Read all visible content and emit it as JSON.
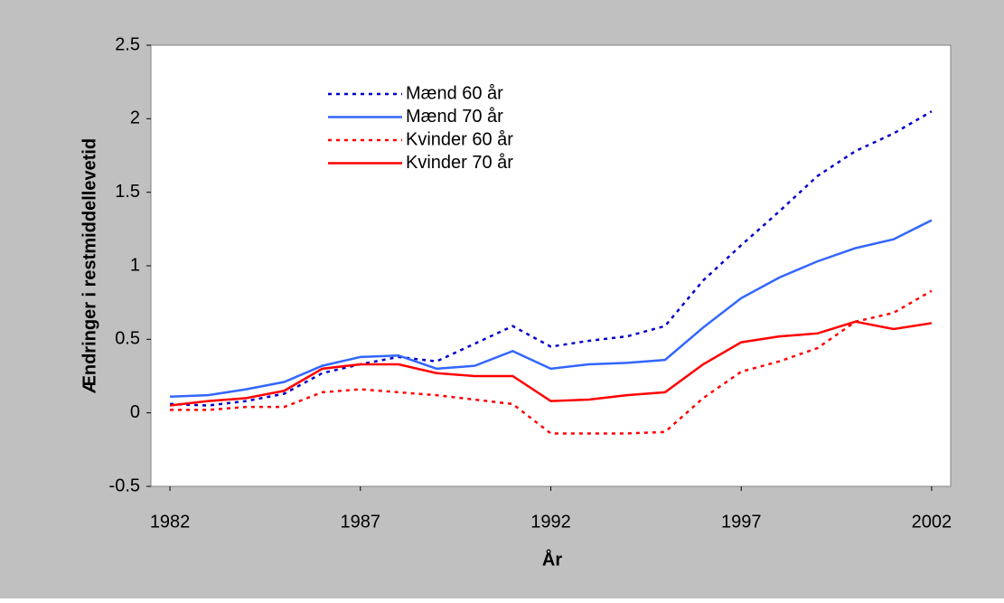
{
  "chart_data": {
    "type": "line",
    "x_label": "År",
    "y_label": "Ændringer i restmiddellevetid",
    "x": [
      1982,
      1983,
      1984,
      1985,
      1986,
      1987,
      1988,
      1989,
      1990,
      1991,
      1992,
      1993,
      1994,
      1995,
      1996,
      1997,
      1998,
      1999,
      2000,
      2001,
      2002
    ],
    "xlim": [
      1981.5,
      2002.5
    ],
    "xticks": [
      1982,
      1987,
      1992,
      1997,
      2002
    ],
    "ylim": [
      -0.5,
      2.5
    ],
    "yticks": [
      -0.5,
      0,
      0.5,
      1,
      1.5,
      2,
      2.5
    ],
    "grid": false,
    "legend": "upper left",
    "series": [
      {
        "name": "Mænd 60 år",
        "color": "#0000cc",
        "style": "dotted",
        "values": [
          0.06,
          0.05,
          0.08,
          0.13,
          0.27,
          0.33,
          0.38,
          0.35,
          0.47,
          0.59,
          0.45,
          0.49,
          0.52,
          0.59,
          0.9,
          1.14,
          1.37,
          1.61,
          1.78,
          1.9,
          2.05
        ]
      },
      {
        "name": "Mænd 70 år",
        "color": "#3366ff",
        "style": "solid",
        "values": [
          0.11,
          0.12,
          0.16,
          0.21,
          0.32,
          0.38,
          0.39,
          0.3,
          0.32,
          0.42,
          0.3,
          0.33,
          0.34,
          0.36,
          0.58,
          0.78,
          0.92,
          1.03,
          1.12,
          1.18,
          1.31
        ]
      },
      {
        "name": "Kvinder 60 år",
        "color": "#ff0000",
        "style": "dotted",
        "values": [
          0.02,
          0.02,
          0.04,
          0.04,
          0.14,
          0.16,
          0.14,
          0.12,
          0.09,
          0.06,
          -0.14,
          -0.14,
          -0.14,
          -0.13,
          0.1,
          0.28,
          0.35,
          0.44,
          0.62,
          0.68,
          0.83
        ]
      },
      {
        "name": "Kvinder 70 år",
        "color": "#ff0000",
        "style": "solid",
        "values": [
          0.05,
          0.08,
          0.1,
          0.15,
          0.3,
          0.33,
          0.33,
          0.27,
          0.25,
          0.25,
          0.08,
          0.09,
          0.12,
          0.14,
          0.33,
          0.48,
          0.52,
          0.54,
          0.62,
          0.57,
          0.61
        ]
      }
    ]
  }
}
